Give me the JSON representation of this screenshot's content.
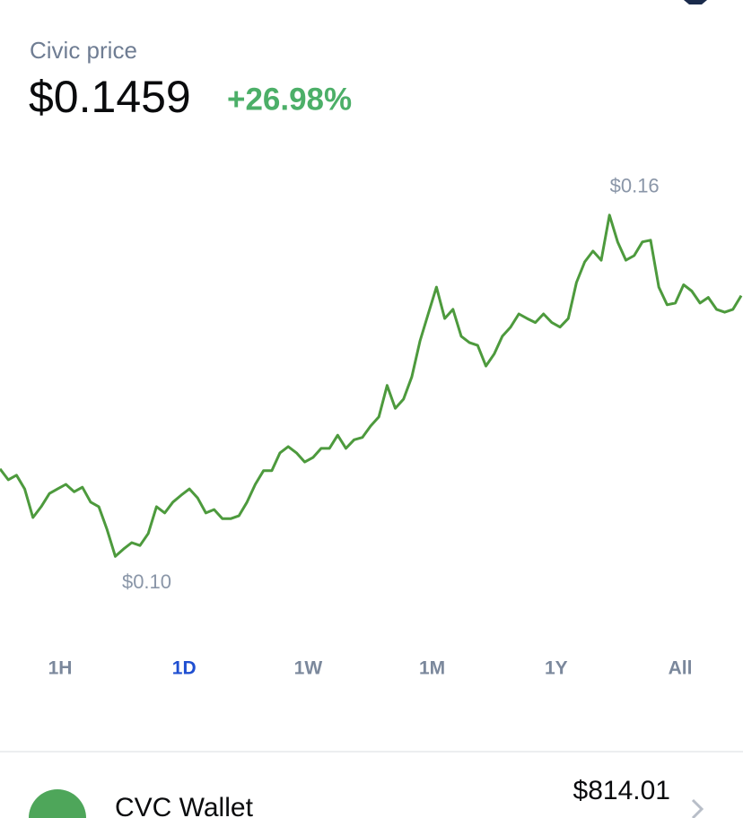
{
  "header": {
    "title": "Civic price",
    "price": "$0.1459",
    "change": "+26.98%"
  },
  "chart_data": {
    "type": "line",
    "color": "#4d9a3d",
    "values": [
      0.1156,
      0.1137,
      0.1145,
      0.1121,
      0.1071,
      0.109,
      0.1113,
      0.1121,
      0.1129,
      0.1116,
      0.1124,
      0.1098,
      0.109,
      0.105,
      0.1003,
      0.1016,
      0.1027,
      0.1022,
      0.1043,
      0.109,
      0.1079,
      0.1098,
      0.111,
      0.1121,
      0.1105,
      0.1079,
      0.1085,
      0.1069,
      0.1069,
      0.1074,
      0.1098,
      0.1129,
      0.1153,
      0.1153,
      0.1184,
      0.1195,
      0.1184,
      0.1168,
      0.1176,
      0.1192,
      0.1192,
      0.1215,
      0.1192,
      0.1207,
      0.1211,
      0.1231,
      0.1247,
      0.1302,
      0.1262,
      0.1278,
      0.1317,
      0.138,
      0.1427,
      0.1474,
      0.1419,
      0.1435,
      0.1388,
      0.1377,
      0.1372,
      0.1336,
      0.1357,
      0.1388,
      0.1404,
      0.1427,
      0.1419,
      0.1412,
      0.1427,
      0.1412,
      0.1404,
      0.1419,
      0.1482,
      0.1518,
      0.1537,
      0.1521,
      0.16,
      0.1553,
      0.1521,
      0.1529,
      0.1553,
      0.1556,
      0.1474,
      0.1443,
      0.1446,
      0.1478,
      0.1467,
      0.1446,
      0.1456,
      0.1435,
      0.143,
      0.1435,
      0.1459
    ],
    "ylim": [
      0.09,
      0.17
    ],
    "annotations": {
      "high": "$0.16",
      "low": "$0.10"
    }
  },
  "tabs": [
    "1H",
    "1D",
    "1W",
    "1M",
    "1Y",
    "All"
  ],
  "selected_tab": "1D",
  "wallet": {
    "name": "CVC Wallet",
    "balance": "$814.01"
  }
}
